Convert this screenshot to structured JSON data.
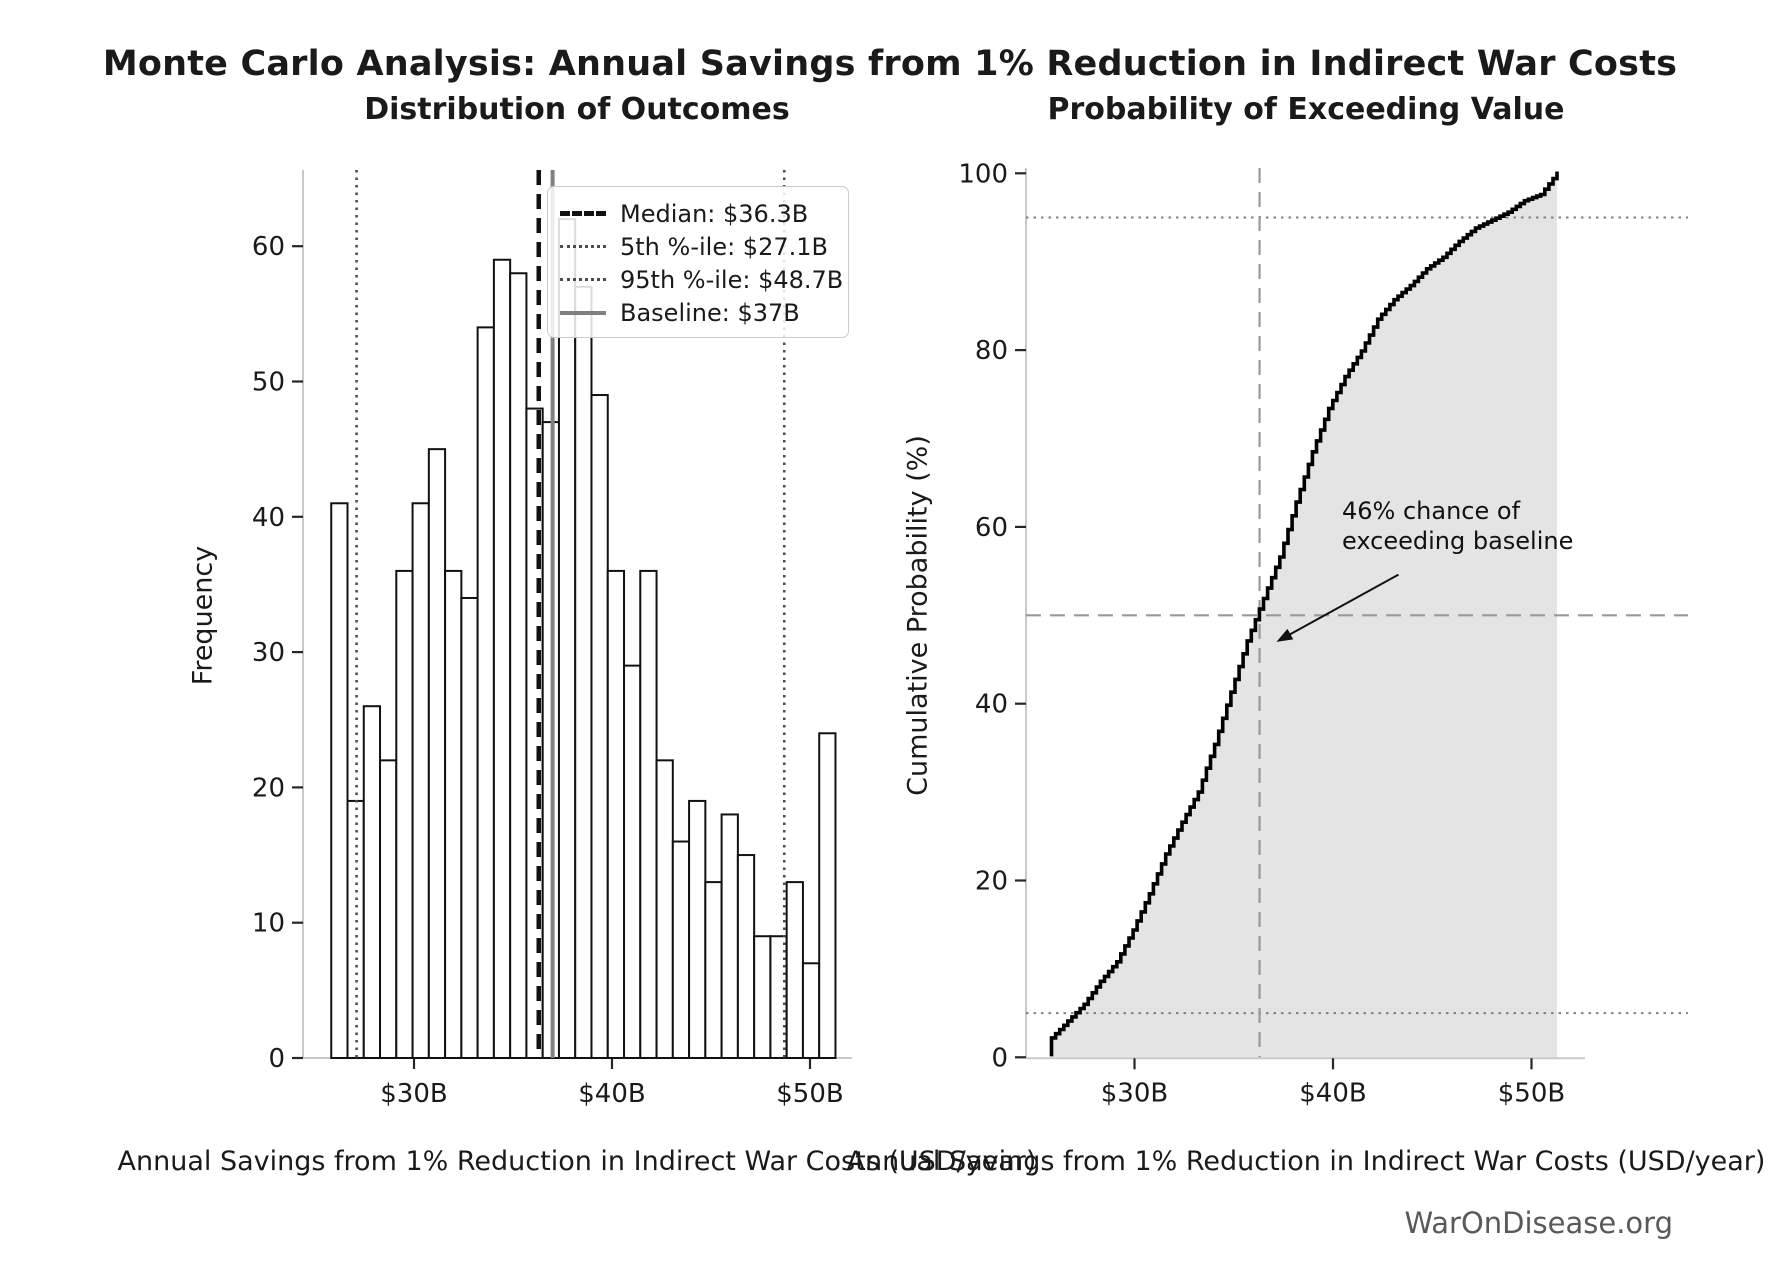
{
  "figure": {
    "suptitle": "Monte Carlo Analysis: Annual Savings from 1% Reduction in Indirect War Costs",
    "watermark": "WarOnDisease.org"
  },
  "left_plot": {
    "title": "Distribution of Outcomes",
    "xlabel": "Annual Savings from 1% Reduction in Indirect War Costs (USD/year)",
    "ylabel": "Frequency"
  },
  "right_plot": {
    "title": "Probability of Exceeding Value",
    "xlabel": "Annual Savings from 1% Reduction in Indirect War Costs (USD/year)",
    "ylabel": "Cumulative Probability (%)",
    "annotation_line1": "46% chance of",
    "annotation_line2": "exceeding baseline"
  },
  "legend": {
    "items": [
      {
        "label": "Median: $36.3B",
        "style": "dashed"
      },
      {
        "label": "5th %-ile: $27.1B",
        "style": "dotted"
      },
      {
        "label": "95th %-ile: $48.7B",
        "style": "dotted"
      },
      {
        "label": "Baseline: $37B",
        "style": "solid"
      }
    ]
  },
  "chart_data": [
    {
      "type": "bar",
      "subtype": "histogram",
      "title": "Distribution of Outcomes",
      "xlabel": "Annual Savings from 1% Reduction in Indirect War Costs (USD/year)",
      "ylabel": "Frequency",
      "n_samples": 1000,
      "bin_start_billion": 25.82,
      "bin_width_billion": 0.8215,
      "values": [
        41,
        19,
        26,
        22,
        36,
        41,
        45,
        36,
        34,
        54,
        59,
        58,
        48,
        47,
        62,
        57,
        49,
        36,
        29,
        36,
        22,
        16,
        19,
        13,
        18,
        15,
        9,
        9,
        13,
        7,
        24
      ],
      "xticks": [
        {
          "value": 30,
          "label": "$30B"
        },
        {
          "value": 40,
          "label": "$40B"
        },
        {
          "value": 50,
          "label": "$50B"
        }
      ],
      "yticks": [
        {
          "value": 0,
          "label": "0"
        },
        {
          "value": 10,
          "label": "10"
        },
        {
          "value": 20,
          "label": "20"
        },
        {
          "value": 30,
          "label": "30"
        },
        {
          "value": 40,
          "label": "40"
        },
        {
          "value": 50,
          "label": "50"
        },
        {
          "value": 60,
          "label": "60"
        }
      ],
      "xlim": [
        24.3,
        52.6
      ],
      "ylim": [
        0,
        65.6
      ],
      "grid": false,
      "bar_fill": "#ffffff",
      "bar_edge": "#111111",
      "ref_lines": [
        {
          "name": "median",
          "value": 36.3,
          "style": "dashed",
          "color": "#111111",
          "width": 4.5
        },
        {
          "name": "p5",
          "value": 27.1,
          "style": "dotted",
          "color": "#4d4d4d",
          "width": 2.6
        },
        {
          "name": "p95",
          "value": 48.7,
          "style": "dotted",
          "color": "#4d4d4d",
          "width": 2.6
        },
        {
          "name": "baseline",
          "value": 37.0,
          "style": "solid",
          "color": "#808080",
          "width": 4
        }
      ],
      "legend_position": "upper right"
    },
    {
      "type": "area",
      "subtype": "empirical-cdf",
      "title": "Probability of Exceeding Value",
      "xlabel": "Annual Savings from 1% Reduction in Indirect War Costs (USD/year)",
      "ylabel": "Cumulative Probability (%)",
      "x_start_billion": 25.82,
      "x_step_billion": 0.8215,
      "cumulative_pct_at_bin_edges": [
        4.1,
        6.0,
        8.6,
        10.8,
        14.4,
        18.5,
        23.0,
        26.6,
        30.0,
        35.4,
        41.3,
        47.1,
        51.9,
        56.6,
        62.8,
        68.5,
        73.4,
        77.0,
        79.9,
        83.5,
        85.7,
        87.3,
        89.2,
        90.5,
        92.3,
        93.8,
        94.7,
        95.6,
        96.9,
        97.6,
        100.0
      ],
      "xticks": [
        {
          "value": 30,
          "label": "$30B"
        },
        {
          "value": 40,
          "label": "$40B"
        },
        {
          "value": 50,
          "label": "$50B"
        }
      ],
      "yticks": [
        {
          "value": 0,
          "label": "0"
        },
        {
          "value": 20,
          "label": "20"
        },
        {
          "value": 40,
          "label": "40"
        },
        {
          "value": 60,
          "label": "60"
        },
        {
          "value": 80,
          "label": "80"
        },
        {
          "value": 100,
          "label": "100"
        }
      ],
      "xlim": [
        24.3,
        52.6
      ],
      "ylim": [
        0,
        100
      ],
      "grid": false,
      "line_color": "#000000",
      "fill_color": "#e4e4e4",
      "ref_lines": [
        {
          "name": "p95-line",
          "orient": "h",
          "value": 95,
          "style": "dotted",
          "color": "#808080",
          "width": 2
        },
        {
          "name": "p5-line",
          "orient": "h",
          "value": 5,
          "style": "dotted",
          "color": "#808080",
          "width": 2
        },
        {
          "name": "fifty-pct-line",
          "orient": "h",
          "value": 50,
          "style": "dashed",
          "color": "#999999",
          "width": 2.2
        },
        {
          "name": "median-line",
          "orient": "v",
          "value": 36.3,
          "style": "dashed",
          "color": "#999999",
          "width": 2.2
        }
      ],
      "annotation": {
        "text": [
          "46% chance of",
          "exceeding baseline"
        ],
        "arrow_from": [
          43.3,
          54.6
        ],
        "arrow_to": [
          37.15,
          47.0
        ]
      }
    }
  ]
}
